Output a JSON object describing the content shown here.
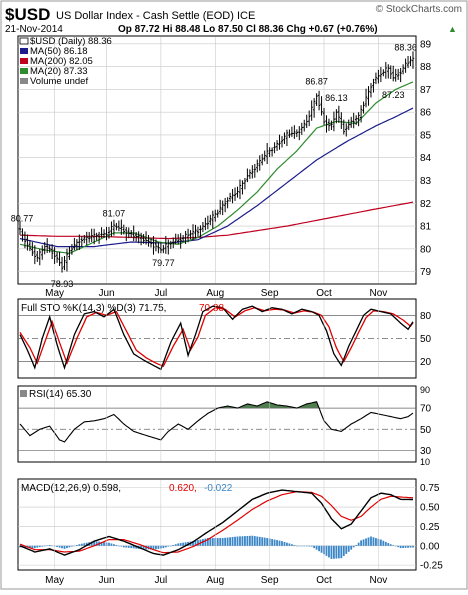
{
  "header": {
    "symbol": "$USD",
    "name": "US Dollar Index - Cash Settle (EOD) ICE",
    "copyright": "© StockCharts.com",
    "date": "21-Nov-2014",
    "stats": "Op 87.72  Hi 88.48  Lo 87.50  Cl 88.36  Chg +0.67 (+0.76%)",
    "chg_arrow": "▲"
  },
  "colors": {
    "price_bar": "#000000",
    "ma50": "#1c1c8c",
    "ma200": "#c00020",
    "ma20": "#2e8b2e",
    "sto_k": "#000000",
    "sto_d": "#e00000",
    "rsi_line": "#000000",
    "rsi_fill": "#4f7f4f",
    "macd_line": "#000000",
    "macd_signal": "#e00000",
    "macd_hist": "#3a86c8",
    "grid": "#c8c8c8",
    "frame": "#000000"
  },
  "chart_data": [
    {
      "type": "line",
      "panel": "price",
      "legend": [
        {
          "label": "$USD (Daily) 88.36",
          "color": "#000000"
        },
        {
          "label": "MA(50) 86.18",
          "color": "#1c1c8c"
        },
        {
          "label": "MA(200) 82.05",
          "color": "#c00020"
        },
        {
          "label": "MA(20) 87.33",
          "color": "#2e8b2e"
        },
        {
          "label": "Volume undef",
          "color": "#808080"
        }
      ],
      "ylim": [
        78.5,
        89.3
      ],
      "yticks": [
        79,
        80,
        81,
        82,
        83,
        84,
        85,
        86,
        87,
        88,
        89
      ],
      "ytick_labels": [
        "79",
        "80",
        "81",
        "82",
        "83",
        "84",
        "85",
        "86",
        "87",
        "88",
        "89"
      ],
      "xtick_labels": [
        "May",
        "Jun",
        "Jul",
        "Aug",
        "Sep",
        "Oct",
        "Nov"
      ],
      "xtick_index": [
        14,
        35,
        57,
        79,
        101,
        123,
        145
      ],
      "n_bars": 160,
      "annotations": [
        {
          "text": "80.77",
          "index": 0,
          "value": 80.77
        },
        {
          "text": "78.93",
          "index": 17,
          "value": 78.93
        },
        {
          "text": "81.07",
          "index": 38,
          "value": 81.07
        },
        {
          "text": "79.77",
          "index": 58,
          "value": 79.77
        },
        {
          "text": "86.87",
          "index": 120,
          "value": 86.87
        },
        {
          "text": "86.13",
          "index": 128,
          "value": 86.13
        },
        {
          "text": "88.36",
          "index": 156,
          "value": 88.36
        },
        {
          "text": "87.23",
          "index": 151,
          "value": 87.23
        }
      ],
      "price_keypoints": [
        [
          0,
          80.77
        ],
        [
          4,
          80.0
        ],
        [
          7,
          79.6
        ],
        [
          10,
          80.1
        ],
        [
          13,
          79.9
        ],
        [
          16,
          79.4
        ],
        [
          17,
          79.2
        ],
        [
          20,
          79.9
        ],
        [
          24,
          80.4
        ],
        [
          28,
          80.5
        ],
        [
          32,
          80.6
        ],
        [
          35,
          80.7
        ],
        [
          38,
          81.0
        ],
        [
          42,
          80.8
        ],
        [
          46,
          80.6
        ],
        [
          50,
          80.4
        ],
        [
          54,
          80.2
        ],
        [
          57,
          79.95
        ],
        [
          60,
          80.2
        ],
        [
          64,
          80.4
        ],
        [
          68,
          80.6
        ],
        [
          72,
          80.8
        ],
        [
          76,
          81.2
        ],
        [
          80,
          81.6
        ],
        [
          84,
          82.2
        ],
        [
          88,
          82.5
        ],
        [
          92,
          83.2
        ],
        [
          96,
          83.7
        ],
        [
          100,
          84.2
        ],
        [
          104,
          84.6
        ],
        [
          108,
          85.0
        ],
        [
          112,
          85.1
        ],
        [
          116,
          85.6
        ],
        [
          119,
          86.4
        ],
        [
          120,
          86.7
        ],
        [
          123,
          85.6
        ],
        [
          126,
          85.4
        ],
        [
          128,
          86.0
        ],
        [
          131,
          85.2
        ],
        [
          134,
          85.6
        ],
        [
          137,
          85.8
        ],
        [
          140,
          86.6
        ],
        [
          143,
          87.4
        ],
        [
          146,
          87.7
        ],
        [
          149,
          87.9
        ],
        [
          151,
          87.5
        ],
        [
          154,
          87.8
        ],
        [
          156,
          88.1
        ],
        [
          159,
          88.36
        ]
      ],
      "ma50_keypoints": [
        [
          0,
          80.45
        ],
        [
          15,
          80.1
        ],
        [
          30,
          80.1
        ],
        [
          45,
          80.3
        ],
        [
          60,
          80.25
        ],
        [
          72,
          80.4
        ],
        [
          84,
          81.0
        ],
        [
          96,
          81.9
        ],
        [
          108,
          82.9
        ],
        [
          120,
          83.9
        ],
        [
          132,
          84.7
        ],
        [
          144,
          85.4
        ],
        [
          152,
          85.8
        ],
        [
          159,
          86.18
        ]
      ],
      "ma200_keypoints": [
        [
          0,
          80.6
        ],
        [
          15,
          80.55
        ],
        [
          30,
          80.55
        ],
        [
          45,
          80.5
        ],
        [
          60,
          80.45
        ],
        [
          72,
          80.5
        ],
        [
          84,
          80.6
        ],
        [
          96,
          80.8
        ],
        [
          108,
          81.0
        ],
        [
          120,
          81.25
        ],
        [
          132,
          81.5
        ],
        [
          144,
          81.75
        ],
        [
          159,
          82.05
        ]
      ],
      "ma20_keypoints": [
        [
          0,
          80.2
        ],
        [
          10,
          79.95
        ],
        [
          20,
          79.8
        ],
        [
          30,
          80.3
        ],
        [
          38,
          80.7
        ],
        [
          46,
          80.7
        ],
        [
          56,
          80.3
        ],
        [
          64,
          80.2
        ],
        [
          72,
          80.5
        ],
        [
          80,
          81.0
        ],
        [
          88,
          81.7
        ],
        [
          96,
          82.5
        ],
        [
          104,
          83.5
        ],
        [
          112,
          84.3
        ],
        [
          120,
          85.3
        ],
        [
          128,
          85.6
        ],
        [
          136,
          85.5
        ],
        [
          144,
          86.4
        ],
        [
          152,
          87.0
        ],
        [
          159,
          87.33
        ]
      ]
    },
    {
      "type": "line",
      "panel": "stochastic",
      "legend": [
        {
          "label": "Full STO %K(14,3) %D(3) 71.75,",
          "color": "#000000"
        },
        {
          "label": "70.38",
          "color": "#e00000"
        }
      ],
      "ylim": [
        0,
        100
      ],
      "yticks": [
        20,
        50,
        80
      ],
      "ytick_labels": [
        "20",
        "50",
        "80"
      ],
      "k_keypoints": [
        [
          0,
          55
        ],
        [
          3,
          35
        ],
        [
          6,
          12
        ],
        [
          9,
          50
        ],
        [
          12,
          78
        ],
        [
          15,
          42
        ],
        [
          18,
          12
        ],
        [
          22,
          55
        ],
        [
          26,
          82
        ],
        [
          30,
          85
        ],
        [
          34,
          78
        ],
        [
          38,
          88
        ],
        [
          42,
          55
        ],
        [
          46,
          30
        ],
        [
          50,
          22
        ],
        [
          54,
          15
        ],
        [
          57,
          10
        ],
        [
          61,
          45
        ],
        [
          65,
          70
        ],
        [
          68,
          28
        ],
        [
          71,
          55
        ],
        [
          74,
          85
        ],
        [
          78,
          92
        ],
        [
          82,
          90
        ],
        [
          86,
          75
        ],
        [
          90,
          88
        ],
        [
          94,
          92
        ],
        [
          98,
          85
        ],
        [
          102,
          90
        ],
        [
          106,
          88
        ],
        [
          110,
          82
        ],
        [
          114,
          88
        ],
        [
          118,
          85
        ],
        [
          121,
          80
        ],
        [
          124,
          60
        ],
        [
          127,
          30
        ],
        [
          130,
          15
        ],
        [
          133,
          40
        ],
        [
          136,
          60
        ],
        [
          139,
          80
        ],
        [
          142,
          88
        ],
        [
          146,
          85
        ],
        [
          150,
          82
        ],
        [
          154,
          70
        ],
        [
          157,
          62
        ],
        [
          159,
          71.75
        ]
      ],
      "d_keypoints": [
        [
          0,
          58
        ],
        [
          4,
          38
        ],
        [
          7,
          18
        ],
        [
          10,
          45
        ],
        [
          13,
          72
        ],
        [
          16,
          45
        ],
        [
          19,
          18
        ],
        [
          23,
          50
        ],
        [
          27,
          78
        ],
        [
          31,
          84
        ],
        [
          35,
          80
        ],
        [
          39,
          85
        ],
        [
          43,
          60
        ],
        [
          47,
          35
        ],
        [
          51,
          25
        ],
        [
          55,
          18
        ],
        [
          58,
          14
        ],
        [
          62,
          40
        ],
        [
          66,
          62
        ],
        [
          69,
          35
        ],
        [
          72,
          52
        ],
        [
          75,
          80
        ],
        [
          79,
          90
        ],
        [
          83,
          88
        ],
        [
          87,
          78
        ],
        [
          91,
          86
        ],
        [
          95,
          90
        ],
        [
          99,
          86
        ],
        [
          103,
          88
        ],
        [
          107,
          87
        ],
        [
          111,
          83
        ],
        [
          115,
          86
        ],
        [
          119,
          84
        ],
        [
          122,
          80
        ],
        [
          125,
          65
        ],
        [
          128,
          38
        ],
        [
          131,
          20
        ],
        [
          134,
          38
        ],
        [
          137,
          58
        ],
        [
          140,
          77
        ],
        [
          143,
          86
        ],
        [
          147,
          85
        ],
        [
          151,
          82
        ],
        [
          155,
          74
        ],
        [
          158,
          66
        ],
        [
          159,
          70.38
        ]
      ]
    },
    {
      "type": "area",
      "panel": "rsi",
      "legend": [
        {
          "label": "RSI(14) 65.30",
          "color": "#000000"
        }
      ],
      "ylim": [
        20,
        90
      ],
      "yticks": [
        30,
        50,
        70
      ],
      "ytick_labels": [
        "30",
        "50",
        "70"
      ],
      "extra_labels": [
        "90",
        "10"
      ],
      "rsi_keypoints": [
        [
          0,
          55
        ],
        [
          4,
          44
        ],
        [
          8,
          50
        ],
        [
          12,
          53
        ],
        [
          16,
          40
        ],
        [
          18,
          38
        ],
        [
          22,
          50
        ],
        [
          26,
          57
        ],
        [
          30,
          58
        ],
        [
          34,
          60
        ],
        [
          38,
          64
        ],
        [
          42,
          55
        ],
        [
          46,
          48
        ],
        [
          50,
          45
        ],
        [
          54,
          42
        ],
        [
          57,
          40
        ],
        [
          60,
          48
        ],
        [
          64,
          55
        ],
        [
          68,
          50
        ],
        [
          72,
          58
        ],
        [
          76,
          65
        ],
        [
          80,
          70
        ],
        [
          84,
          72
        ],
        [
          88,
          70
        ],
        [
          92,
          74
        ],
        [
          96,
          72
        ],
        [
          100,
          76
        ],
        [
          104,
          73
        ],
        [
          108,
          72
        ],
        [
          112,
          70
        ],
        [
          116,
          74
        ],
        [
          120,
          76
        ],
        [
          123,
          58
        ],
        [
          126,
          50
        ],
        [
          130,
          48
        ],
        [
          134,
          55
        ],
        [
          138,
          60
        ],
        [
          142,
          66
        ],
        [
          146,
          64
        ],
        [
          150,
          62
        ],
        [
          154,
          60
        ],
        [
          157,
          62
        ],
        [
          159,
          65.3
        ]
      ]
    },
    {
      "type": "line",
      "panel": "macd",
      "legend": [
        {
          "label": "MACD(12,26,9) 0.598,",
          "color": "#000000"
        },
        {
          "label": "0.620,",
          "color": "#e00000"
        },
        {
          "label": "-0.022",
          "color": "#3a86c8"
        }
      ],
      "ylim": [
        -0.3,
        0.85
      ],
      "yticks": [
        -0.25,
        0.0,
        0.25,
        0.5,
        0.75
      ],
      "ytick_labels": [
        "-0.25",
        "0.00",
        "0.25",
        "0.50",
        "0.75"
      ],
      "macd_keypoints": [
        [
          0,
          0.0
        ],
        [
          6,
          -0.08
        ],
        [
          12,
          -0.04
        ],
        [
          18,
          -0.12
        ],
        [
          24,
          -0.05
        ],
        [
          30,
          0.06
        ],
        [
          36,
          0.12
        ],
        [
          42,
          0.06
        ],
        [
          48,
          -0.02
        ],
        [
          54,
          -0.1
        ],
        [
          58,
          -0.12
        ],
        [
          64,
          -0.05
        ],
        [
          70,
          0.05
        ],
        [
          76,
          0.18
        ],
        [
          82,
          0.3
        ],
        [
          88,
          0.45
        ],
        [
          94,
          0.6
        ],
        [
          100,
          0.68
        ],
        [
          106,
          0.72
        ],
        [
          112,
          0.7
        ],
        [
          118,
          0.68
        ],
        [
          122,
          0.55
        ],
        [
          126,
          0.35
        ],
        [
          130,
          0.22
        ],
        [
          134,
          0.28
        ],
        [
          138,
          0.45
        ],
        [
          142,
          0.62
        ],
        [
          146,
          0.68
        ],
        [
          150,
          0.66
        ],
        [
          154,
          0.6
        ],
        [
          159,
          0.598
        ]
      ],
      "signal_keypoints": [
        [
          0,
          0.02
        ],
        [
          6,
          -0.05
        ],
        [
          12,
          -0.05
        ],
        [
          18,
          -0.08
        ],
        [
          24,
          -0.07
        ],
        [
          30,
          0.0
        ],
        [
          36,
          0.08
        ],
        [
          42,
          0.08
        ],
        [
          48,
          0.02
        ],
        [
          54,
          -0.05
        ],
        [
          58,
          -0.09
        ],
        [
          64,
          -0.08
        ],
        [
          70,
          -0.01
        ],
        [
          76,
          0.08
        ],
        [
          82,
          0.2
        ],
        [
          88,
          0.33
        ],
        [
          94,
          0.47
        ],
        [
          100,
          0.58
        ],
        [
          106,
          0.66
        ],
        [
          112,
          0.7
        ],
        [
          118,
          0.69
        ],
        [
          122,
          0.64
        ],
        [
          126,
          0.52
        ],
        [
          130,
          0.38
        ],
        [
          134,
          0.33
        ],
        [
          138,
          0.38
        ],
        [
          142,
          0.5
        ],
        [
          146,
          0.6
        ],
        [
          150,
          0.64
        ],
        [
          154,
          0.63
        ],
        [
          159,
          0.62
        ]
      ]
    }
  ]
}
